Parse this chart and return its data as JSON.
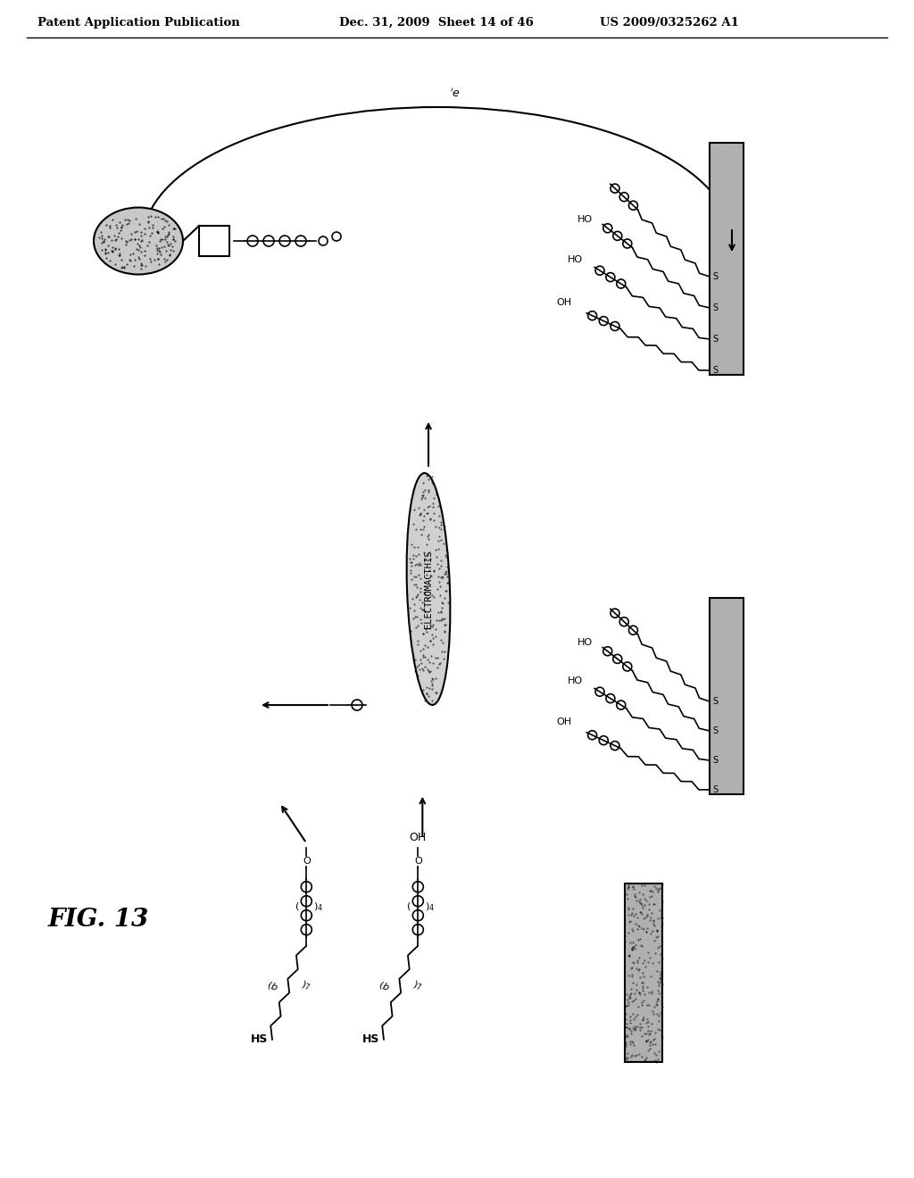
{
  "background": "#ffffff",
  "text_color": "#000000",
  "header_left": "Patent Application Publication",
  "header_mid": "Dec. 31, 2009  Sheet 14 of 46",
  "header_right": "US 2009/0325262 A1",
  "fig_label": "FIG. 13",
  "electrodes_text": "ELECTROMACTHIS",
  "surface_color": "#b0b0b0",
  "bead_color": "#c8c8c8",
  "electrode_color": "#d0d0d0"
}
